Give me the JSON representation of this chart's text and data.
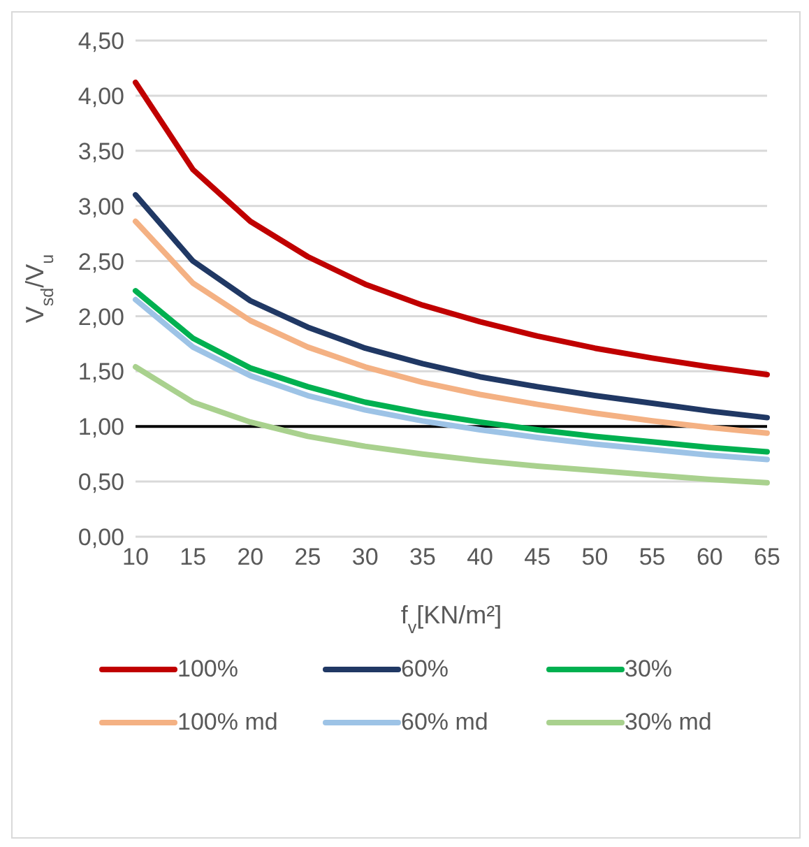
{
  "chart_data": {
    "type": "line",
    "xlabel": "f$_{v}$[KN/m²]",
    "ylabel": "V$_{sd}$/V$_{u}$",
    "categories": [
      "10",
      "15",
      "20",
      "25",
      "30",
      "35",
      "40",
      "45",
      "50",
      "55",
      "60",
      "65"
    ],
    "series": [
      {
        "name": "100%",
        "color": "#c00000",
        "values": [
          4.12,
          3.33,
          2.86,
          2.54,
          2.29,
          2.1,
          1.95,
          1.82,
          1.71,
          1.62,
          1.54,
          1.47
        ]
      },
      {
        "name": "60%",
        "color": "#203864",
        "values": [
          3.1,
          2.5,
          2.14,
          1.9,
          1.71,
          1.57,
          1.45,
          1.36,
          1.28,
          1.21,
          1.14,
          1.08
        ]
      },
      {
        "name": "30%",
        "color": "#00b050",
        "values": [
          2.23,
          1.8,
          1.53,
          1.36,
          1.22,
          1.12,
          1.04,
          0.97,
          0.91,
          0.86,
          0.81,
          0.77
        ]
      },
      {
        "name": "100% md",
        "color": "#f4b183",
        "values": [
          2.86,
          2.3,
          1.96,
          1.72,
          1.54,
          1.4,
          1.29,
          1.2,
          1.12,
          1.05,
          0.99,
          0.94
        ]
      },
      {
        "name": "60% md",
        "color": "#9dc3e6",
        "values": [
          2.15,
          1.72,
          1.46,
          1.28,
          1.15,
          1.05,
          0.97,
          0.9,
          0.84,
          0.79,
          0.74,
          0.7
        ]
      },
      {
        "name": "30% md",
        "color": "#a9d18e",
        "values": [
          1.54,
          1.22,
          1.04,
          0.91,
          0.82,
          0.75,
          0.69,
          0.64,
          0.6,
          0.56,
          0.52,
          0.49
        ]
      }
    ],
    "ylim": [
      0,
      4.5
    ],
    "yticks": [
      {
        "value": 0,
        "label": "0,00"
      },
      {
        "value": 0.5,
        "label": "0,50"
      },
      {
        "value": 1,
        "label": "1,00"
      },
      {
        "value": 1.5,
        "label": "1,50"
      },
      {
        "value": 2,
        "label": "2,00"
      },
      {
        "value": 2.5,
        "label": "2,50"
      },
      {
        "value": 3,
        "label": "3,00"
      },
      {
        "value": 3.5,
        "label": "3,50"
      },
      {
        "value": 4,
        "label": "4,00"
      },
      {
        "value": 4.5,
        "label": "4,50"
      }
    ],
    "ref_lines": [
      {
        "axis": "y",
        "value": 1,
        "color": "#000000"
      }
    ],
    "grid": "y",
    "legend": "bottom",
    "marker": "none",
    "line_style": "solid"
  }
}
